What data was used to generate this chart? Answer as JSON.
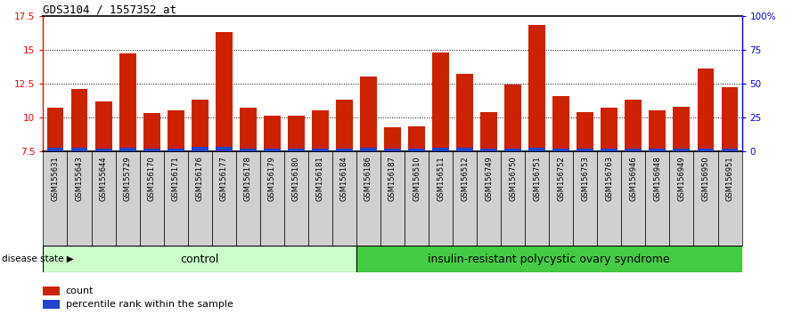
{
  "title": "GDS3104 / 1557352_at",
  "samples": [
    "GSM155631",
    "GSM155643",
    "GSM155644",
    "GSM155729",
    "GSM156170",
    "GSM156171",
    "GSM156176",
    "GSM156177",
    "GSM156178",
    "GSM156179",
    "GSM156180",
    "GSM156181",
    "GSM156184",
    "GSM156186",
    "GSM156187",
    "GSM156510",
    "GSM156511",
    "GSM156512",
    "GSM156749",
    "GSM156750",
    "GSM156751",
    "GSM156752",
    "GSM156753",
    "GSM156763",
    "GSM156946",
    "GSM156948",
    "GSM156949",
    "GSM156950",
    "GSM156951"
  ],
  "count_values": [
    10.7,
    12.1,
    11.2,
    14.7,
    10.35,
    10.5,
    11.3,
    16.3,
    10.7,
    10.1,
    10.1,
    10.5,
    11.3,
    13.0,
    9.3,
    9.35,
    14.8,
    13.2,
    10.4,
    12.4,
    16.8,
    11.6,
    10.4,
    10.7,
    11.3,
    10.5,
    10.8,
    13.6,
    12.2
  ],
  "percentile_values": [
    0.25,
    0.25,
    0.2,
    0.25,
    0.18,
    0.18,
    0.3,
    0.3,
    0.2,
    0.18,
    0.18,
    0.2,
    0.2,
    0.25,
    0.2,
    0.18,
    0.25,
    0.25,
    0.22,
    0.22,
    0.25,
    0.2,
    0.18,
    0.22,
    0.2,
    0.2,
    0.2,
    0.22,
    0.2
  ],
  "ymin": 7.5,
  "ymax": 17.5,
  "yticks": [
    7.5,
    10.0,
    12.5,
    15.0,
    17.5
  ],
  "ytick_labels": [
    "7.5",
    "10",
    "12.5",
    "15",
    "17.5"
  ],
  "right_ytick_labels": [
    "0",
    "25",
    "50",
    "75",
    "100%"
  ],
  "right_ytick_pcts": [
    0,
    25,
    50,
    75,
    100
  ],
  "bar_color": "#cc2200",
  "percentile_color": "#2244cc",
  "n_control": 13,
  "n_disease": 16,
  "control_label": "control",
  "disease_label": "insulin-resistant polycystic ovary syndrome",
  "control_bg": "#ccffcc",
  "disease_bg": "#44cc44",
  "xticklabel_bg": "#d0d0d0",
  "legend_count": "count",
  "legend_percentile": "percentile rank within the sample",
  "disease_state_label": "disease state"
}
